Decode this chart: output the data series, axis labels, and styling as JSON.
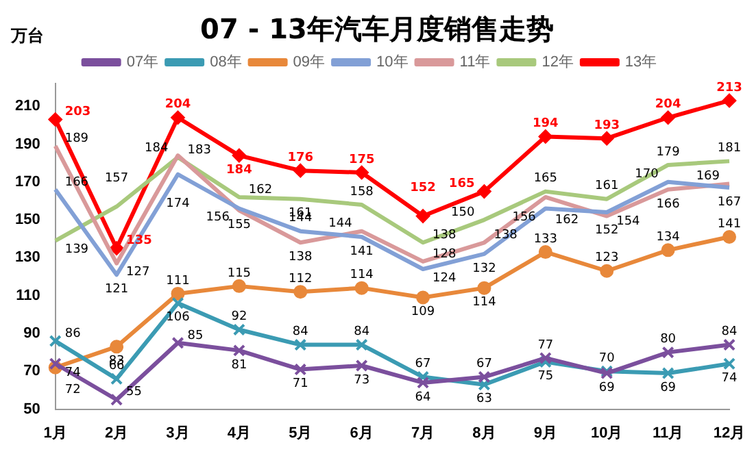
{
  "chart_data": {
    "type": "line",
    "title": "07 - 13年汽车月度销售走势",
    "ylabel": "万台",
    "categories": [
      "1月",
      "2月",
      "3月",
      "4月",
      "5月",
      "6月",
      "7月",
      "8月",
      "9月",
      "10月",
      "11月",
      "12月"
    ],
    "ylim": [
      50,
      222
    ],
    "yticks": [
      50,
      70,
      90,
      110,
      130,
      150,
      170,
      190,
      210
    ],
    "grid": false,
    "legend": "top",
    "data_labels": true,
    "series": [
      {
        "name": "07年",
        "color": "#7b4f9d",
        "marker": "cross",
        "values": [
          74,
          55,
          85,
          81,
          71,
          73,
          64,
          67,
          77,
          69,
          80,
          84
        ]
      },
      {
        "name": "08年",
        "color": "#3b9bb3",
        "marker": "cross",
        "values": [
          86,
          66,
          106,
          92,
          84,
          84,
          67,
          63,
          75,
          70,
          69,
          74
        ]
      },
      {
        "name": "09年",
        "color": "#e8883a",
        "marker": "circle",
        "values": [
          72,
          83,
          111,
          115,
          112,
          114,
          109,
          114,
          133,
          123,
          134,
          141
        ]
      },
      {
        "name": "10年",
        "color": "#82a0d6",
        "marker": "none",
        "values": [
          166,
          121,
          174,
          156,
          144,
          141,
          124,
          132,
          156,
          154,
          170,
          167
        ]
      },
      {
        "name": "11年",
        "color": "#d9999a",
        "marker": "none",
        "values": [
          189,
          127,
          184,
          155,
          138,
          144,
          128,
          138,
          162,
          152,
          166,
          169
        ]
      },
      {
        "name": "12年",
        "color": "#a8c97c",
        "marker": "none",
        "values": [
          139,
          157,
          183,
          162,
          161,
          158,
          138,
          150,
          165,
          161,
          179,
          181
        ]
      },
      {
        "name": "13年",
        "color": "#ff0000",
        "marker": "diamond",
        "values": [
          203,
          135,
          204,
          184,
          176,
          175,
          152,
          165,
          194,
          193,
          204,
          213
        ]
      }
    ]
  }
}
